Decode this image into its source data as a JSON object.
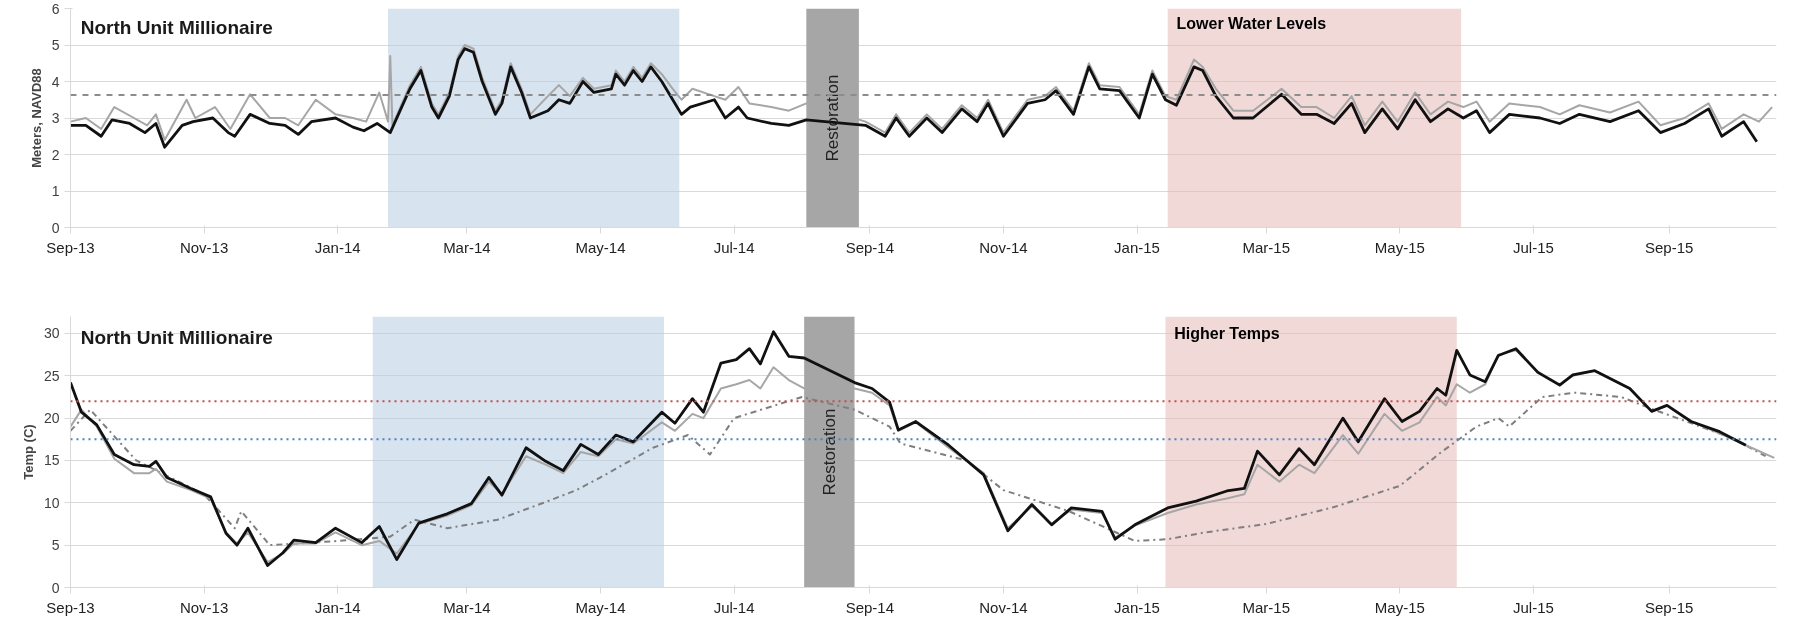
{
  "chart_data": [
    {
      "type": "line",
      "title": "North Unit Millionaire",
      "ylabel": "Meters, NAVD88",
      "xlim": [
        "2013-09-01",
        "2015-10-20"
      ],
      "ylim": [
        0,
        6
      ],
      "yticks": [
        0,
        1,
        2,
        3,
        4,
        5,
        6
      ],
      "xticks": [
        {
          "value": "2013-09-01",
          "label": "Sep-13"
        },
        {
          "value": "2013-11-01",
          "label": "Nov-13"
        },
        {
          "value": "2014-01-01",
          "label": "Jan-14"
        },
        {
          "value": "2014-03-01",
          "label": "Mar-14"
        },
        {
          "value": "2014-05-01",
          "label": "May-14"
        },
        {
          "value": "2014-07-01",
          "label": "Jul-14"
        },
        {
          "value": "2014-09-01",
          "label": "Sep-14"
        },
        {
          "value": "2014-11-01",
          "label": "Nov-14"
        },
        {
          "value": "2015-01-01",
          "label": "Jan-15"
        },
        {
          "value": "2015-03-01",
          "label": "Mar-15"
        },
        {
          "value": "2015-05-01",
          "label": "May-15"
        },
        {
          "value": "2015-07-01",
          "label": "Jul-15"
        },
        {
          "value": "2015-09-01",
          "label": "Sep-15"
        }
      ],
      "grid": "y",
      "bands": [
        {
          "axis": "x",
          "from": "2014-01-24",
          "to": "2014-06-06",
          "color": "#b8cce4"
        },
        {
          "axis": "x",
          "from": "2014-08-03",
          "to": "2014-08-27",
          "label": "Restoration",
          "color": "#a6a6a6"
        },
        {
          "axis": "x",
          "from": "2015-01-15",
          "to": "2015-05-29",
          "label": "Lower Water Levels",
          "color": "#e6b9b8"
        }
      ],
      "ref_lines": [
        {
          "axis": "y",
          "value": 3.63,
          "color": "#8c8c8c",
          "line_style": "dashed"
        }
      ],
      "series": [
        {
          "color": "#a6a6a6",
          "line_style": "solid",
          "x": [
            "2013-09-01",
            "2013-09-08",
            "2013-09-15",
            "2013-09-21",
            "2013-09-30",
            "2013-10-06",
            "2013-10-10",
            "2013-10-14",
            "2013-10-24",
            "2013-10-28",
            "2013-11-06",
            "2013-11-13",
            "2013-11-22",
            "2013-12-01",
            "2013-12-08",
            "2013-12-14",
            "2013-12-22",
            "2013-12-31",
            "2014-01-08",
            "2014-01-14",
            "2014-01-20",
            "2014-01-24",
            "2014-01-25",
            "2014-01-26",
            "2014-02-03",
            "2014-02-08",
            "2014-02-13",
            "2014-02-16",
            "2014-02-21",
            "2014-02-25",
            "2014-02-28",
            "2014-03-04",
            "2014-03-08",
            "2014-03-14",
            "2014-03-17",
            "2014-03-21",
            "2014-03-26",
            "2014-03-30",
            "2014-04-07",
            "2014-04-12",
            "2014-04-17",
            "2014-04-23",
            "2014-04-28",
            "2014-05-06",
            "2014-05-08",
            "2014-05-12",
            "2014-05-16",
            "2014-05-20",
            "2014-05-24",
            "2014-05-29",
            "2014-06-03",
            "2014-06-07",
            "2014-06-12",
            "2014-06-22",
            "2014-06-27",
            "2014-07-03",
            "2014-07-08",
            "2014-07-18",
            "2014-07-26",
            "2014-08-03",
            "2014-08-30",
            "2014-09-08",
            "2014-09-13",
            "2014-09-19",
            "2014-09-27",
            "2014-10-04",
            "2014-10-13",
            "2014-10-20",
            "2014-10-25",
            "2014-11-01",
            "2014-11-12",
            "2014-11-20",
            "2014-11-25",
            "2014-12-03",
            "2014-12-10",
            "2014-12-15",
            "2014-12-24",
            "2015-01-02",
            "2015-01-08",
            "2015-01-14",
            "2015-01-19",
            "2015-01-27",
            "2015-01-31",
            "2015-02-06",
            "2015-02-14",
            "2015-02-23",
            "2015-03-08",
            "2015-03-17",
            "2015-03-24",
            "2015-04-01",
            "2015-04-09",
            "2015-04-15",
            "2015-04-23",
            "2015-04-30",
            "2015-05-08",
            "2015-05-15",
            "2015-05-23",
            "2015-05-30",
            "2015-06-05",
            "2015-06-11",
            "2015-06-20",
            "2015-07-04",
            "2015-07-13",
            "2015-07-22",
            "2015-08-05",
            "2015-08-18",
            "2015-08-28",
            "2015-09-08",
            "2015-09-19",
            "2015-09-25",
            "2015-10-05",
            "2015-10-12",
            "2015-10-18"
          ],
          "values": [
            2.9,
            3.0,
            2.7,
            3.3,
            3.0,
            2.8,
            3.1,
            2.4,
            3.5,
            3.0,
            3.3,
            2.7,
            3.65,
            3.0,
            3.0,
            2.8,
            3.5,
            3.1,
            3.0,
            2.9,
            3.7,
            2.9,
            4.7,
            2.8,
            3.9,
            4.4,
            3.4,
            3.1,
            3.7,
            4.7,
            5.0,
            4.9,
            4.1,
            3.2,
            3.5,
            4.5,
            3.8,
            3.1,
            3.6,
            3.9,
            3.6,
            4.1,
            3.8,
            3.9,
            4.3,
            4.0,
            4.4,
            4.1,
            4.5,
            4.2,
            3.8,
            3.5,
            3.8,
            3.6,
            3.5,
            3.85,
            3.4,
            3.3,
            3.2,
            3.4,
            2.9,
            2.6,
            3.1,
            2.6,
            3.1,
            2.7,
            3.35,
            3.0,
            3.5,
            2.6,
            3.5,
            3.6,
            3.85,
            3.2,
            4.5,
            3.9,
            3.85,
            3.1,
            4.3,
            3.6,
            3.5,
            4.6,
            4.4,
            3.8,
            3.2,
            3.2,
            3.8,
            3.3,
            3.3,
            3.0,
            3.6,
            2.8,
            3.45,
            2.9,
            3.7,
            3.1,
            3.45,
            3.3,
            3.45,
            2.9,
            3.4,
            3.3,
            3.1,
            3.35,
            3.15,
            3.45,
            2.8,
            3.0,
            3.4,
            2.7,
            3.1,
            2.9,
            3.3
          ]
        },
        {
          "color": "#111111",
          "line_style": "solid",
          "x": [
            "2013-09-01",
            "2013-09-08",
            "2013-09-15",
            "2013-09-20",
            "2013-09-28",
            "2013-10-05",
            "2013-10-10",
            "2013-10-14",
            "2013-10-22",
            "2013-10-27",
            "2013-11-05",
            "2013-11-12",
            "2013-11-15",
            "2013-11-22",
            "2013-12-01",
            "2013-12-08",
            "2013-12-14",
            "2013-12-20",
            "2013-12-31",
            "2014-01-08",
            "2014-01-13",
            "2014-01-19",
            "2014-01-25",
            "2014-02-03",
            "2014-02-08",
            "2014-02-13",
            "2014-02-16",
            "2014-02-21",
            "2014-02-25",
            "2014-02-28",
            "2014-03-04",
            "2014-03-08",
            "2014-03-14",
            "2014-03-17",
            "2014-03-21",
            "2014-03-26",
            "2014-03-30",
            "2014-04-07",
            "2014-04-12",
            "2014-04-17",
            "2014-04-23",
            "2014-04-28",
            "2014-05-06",
            "2014-05-08",
            "2014-05-12",
            "2014-05-16",
            "2014-05-20",
            "2014-05-24",
            "2014-05-29",
            "2014-06-03",
            "2014-06-07",
            "2014-06-11",
            "2014-06-22",
            "2014-06-27",
            "2014-07-03",
            "2014-07-07",
            "2014-07-18",
            "2014-07-26",
            "2014-08-03",
            "2014-08-30",
            "2014-09-08",
            "2014-09-13",
            "2014-09-19",
            "2014-09-27",
            "2014-10-04",
            "2014-10-13",
            "2014-10-20",
            "2014-10-25",
            "2014-11-01",
            "2014-11-12",
            "2014-11-20",
            "2014-11-25",
            "2014-12-03",
            "2014-12-10",
            "2014-12-15",
            "2014-12-24",
            "2015-01-02",
            "2015-01-08",
            "2015-01-14",
            "2015-01-19",
            "2015-01-27",
            "2015-01-31",
            "2015-02-06",
            "2015-02-14",
            "2015-02-23",
            "2015-03-08",
            "2015-03-17",
            "2015-03-24",
            "2015-04-01",
            "2015-04-09",
            "2015-04-15",
            "2015-04-23",
            "2015-04-30",
            "2015-05-08",
            "2015-05-15",
            "2015-05-23",
            "2015-05-30",
            "2015-06-05",
            "2015-06-11",
            "2015-06-20",
            "2015-07-04",
            "2015-07-13",
            "2015-07-22",
            "2015-08-05",
            "2015-08-18",
            "2015-08-28",
            "2015-09-08",
            "2015-09-19",
            "2015-09-25",
            "2015-10-05",
            "2015-10-11"
          ],
          "values": [
            2.8,
            2.8,
            2.5,
            2.95,
            2.85,
            2.6,
            2.85,
            2.2,
            2.8,
            2.9,
            3.0,
            2.6,
            2.5,
            3.1,
            2.85,
            2.8,
            2.55,
            2.9,
            3.0,
            2.75,
            2.65,
            2.85,
            2.6,
            3.8,
            4.3,
            3.3,
            3.0,
            3.6,
            4.6,
            4.9,
            4.8,
            4.0,
            3.1,
            3.4,
            4.4,
            3.7,
            3.0,
            3.2,
            3.5,
            3.4,
            4.0,
            3.7,
            3.8,
            4.2,
            3.9,
            4.3,
            4.0,
            4.4,
            4.0,
            3.5,
            3.1,
            3.3,
            3.5,
            3.0,
            3.3,
            3.0,
            2.85,
            2.8,
            2.95,
            2.8,
            2.5,
            3.0,
            2.5,
            3.0,
            2.6,
            3.25,
            2.9,
            3.4,
            2.5,
            3.4,
            3.5,
            3.75,
            3.1,
            4.4,
            3.8,
            3.75,
            3.0,
            4.2,
            3.5,
            3.35,
            4.4,
            4.3,
            3.6,
            3.0,
            3.0,
            3.65,
            3.1,
            3.1,
            2.85,
            3.4,
            2.6,
            3.25,
            2.7,
            3.5,
            2.9,
            3.25,
            3.0,
            3.2,
            2.6,
            3.1,
            3.0,
            2.85,
            3.1,
            2.9,
            3.2,
            2.6,
            2.85,
            3.25,
            2.5,
            2.9,
            2.35
          ]
        }
      ]
    },
    {
      "type": "line",
      "title": "North Unit Millionaire",
      "ylabel": "Temp (C)",
      "xlim": [
        "2013-09-01",
        "2015-10-20"
      ],
      "ylim": [
        0,
        32
      ],
      "yticks": [
        0,
        5,
        10,
        15,
        20,
        25,
        30
      ],
      "xticks": [
        {
          "value": "2013-09-01",
          "label": "Sep-13"
        },
        {
          "value": "2013-11-01",
          "label": "Nov-13"
        },
        {
          "value": "2014-01-01",
          "label": "Jan-14"
        },
        {
          "value": "2014-03-01",
          "label": "Mar-14"
        },
        {
          "value": "2014-05-01",
          "label": "May-14"
        },
        {
          "value": "2014-07-01",
          "label": "Jul-14"
        },
        {
          "value": "2014-09-01",
          "label": "Sep-14"
        },
        {
          "value": "2014-11-01",
          "label": "Nov-14"
        },
        {
          "value": "2015-01-01",
          "label": "Jan-15"
        },
        {
          "value": "2015-03-01",
          "label": "Mar-15"
        },
        {
          "value": "2015-05-01",
          "label": "May-15"
        },
        {
          "value": "2015-07-01",
          "label": "Jul-15"
        },
        {
          "value": "2015-09-01",
          "label": "Sep-15"
        }
      ],
      "grid": "y",
      "bands": [
        {
          "axis": "x",
          "from": "2014-01-17",
          "to": "2014-05-30",
          "color": "#b8cce4"
        },
        {
          "axis": "x",
          "from": "2014-08-02",
          "to": "2014-08-25",
          "label": "Restoration",
          "color": "#a6a6a6"
        },
        {
          "axis": "x",
          "from": "2015-01-14",
          "to": "2015-05-27",
          "label": "Higher Temps",
          "color": "#e6b9b8"
        }
      ],
      "ref_lines": [
        {
          "axis": "y",
          "value": 22,
          "color": "#c0504d",
          "line_style": "dotted"
        },
        {
          "axis": "y",
          "value": 17.5,
          "color": "#4f81bd",
          "line_style": "dotted"
        }
      ],
      "series": [
        {
          "color": "#7f7f7f",
          "line_style": "dashed",
          "x": [
            "2013-09-01",
            "2013-09-10",
            "2013-10-01",
            "2013-11-01",
            "2013-11-15",
            "2013-11-18",
            "2013-12-01",
            "2014-01-01",
            "2014-01-25",
            "2014-02-05",
            "2014-02-20",
            "2014-03-15",
            "2014-04-05",
            "2014-04-20",
            "2014-05-01",
            "2014-05-25",
            "2014-06-10",
            "2014-06-20",
            "2014-07-01",
            "2014-08-01",
            "2014-08-25",
            "2014-09-10",
            "2014-09-15",
            "2014-10-15",
            "2014-11-01",
            "2014-12-01",
            "2014-12-31",
            "2015-01-15",
            "2015-02-01",
            "2015-03-01",
            "2015-04-01",
            "2015-05-01",
            "2015-05-20",
            "2015-06-05",
            "2015-06-15",
            "2015-06-20",
            "2015-07-05",
            "2015-07-20",
            "2015-08-10",
            "2015-08-25",
            "2015-09-10",
            "2015-10-01",
            "2015-10-15"
          ],
          "values": [
            18.5,
            21,
            15,
            11,
            7,
            9,
            5,
            5.5,
            6,
            8,
            7,
            8,
            10,
            11.5,
            13,
            16.5,
            18,
            15.7,
            20,
            22.5,
            21,
            19,
            17,
            15,
            11.5,
            9,
            5.5,
            5.7,
            6.5,
            7.5,
            9.5,
            12,
            16,
            19,
            20,
            19,
            22.5,
            23,
            22.5,
            21,
            19.5,
            17.5,
            15.5
          ]
        },
        {
          "color": "#a6a6a6",
          "line_style": "solid",
          "x": [
            "2013-09-01",
            "2013-09-06",
            "2013-09-13",
            "2013-09-21",
            "2013-09-30",
            "2013-10-07",
            "2013-10-10",
            "2013-10-15",
            "2013-10-26",
            "2013-11-04",
            "2013-11-11",
            "2013-11-16",
            "2013-11-21",
            "2013-11-30",
            "2013-12-07",
            "2013-12-12",
            "2013-12-22",
            "2013-12-31",
            "2014-01-12",
            "2014-01-20",
            "2014-01-28",
            "2014-02-07",
            "2014-02-20",
            "2014-03-03",
            "2014-03-11",
            "2014-03-17",
            "2014-03-28",
            "2014-04-06",
            "2014-04-14",
            "2014-04-22",
            "2014-04-30",
            "2014-05-08",
            "2014-05-16",
            "2014-05-29",
            "2014-06-04",
            "2014-06-12",
            "2014-06-17",
            "2014-06-25",
            "2014-07-02",
            "2014-07-08",
            "2014-07-13",
            "2014-07-19",
            "2014-07-26",
            "2014-08-02",
            "2014-08-25",
            "2014-09-02",
            "2014-09-10",
            "2014-09-14",
            "2014-09-22",
            "2014-10-07",
            "2014-10-23",
            "2014-11-03",
            "2014-11-14",
            "2014-11-23",
            "2014-12-02",
            "2014-12-16",
            "2014-12-22",
            "2014-12-31",
            "2015-01-15",
            "2015-01-28",
            "2015-02-11",
            "2015-02-19",
            "2015-02-25",
            "2015-03-07",
            "2015-03-16",
            "2015-03-23",
            "2015-04-05",
            "2015-04-12",
            "2015-04-24",
            "2015-05-02",
            "2015-05-10",
            "2015-05-18",
            "2015-05-22",
            "2015-05-27",
            "2015-06-02",
            "2015-06-09",
            "2015-06-15",
            "2015-06-23",
            "2015-07-03",
            "2015-07-13",
            "2015-07-19",
            "2015-07-29",
            "2015-08-14",
            "2015-08-24",
            "2015-08-31",
            "2015-09-11",
            "2015-09-24",
            "2015-10-06",
            "2015-10-19"
          ],
          "values": [
            19,
            21,
            19,
            15.2,
            13.5,
            13.5,
            14,
            12.5,
            11.5,
            10.5,
            6.5,
            5.2,
            6.5,
            3,
            4,
            5.2,
            5.2,
            6.5,
            5,
            5.5,
            4,
            7.5,
            8.5,
            9.7,
            12.5,
            11,
            15.5,
            14.5,
            13.5,
            16,
            15.5,
            17.5,
            17,
            19.5,
            18.5,
            20.5,
            20,
            23.5,
            24,
            24.5,
            23.5,
            26,
            24.5,
            23.5,
            23.5,
            23,
            21.5,
            18.5,
            19.5,
            16.5,
            13.5,
            7,
            9.6,
            7.5,
            9.2,
            8.8,
            5.9,
            7.3,
            8.8,
            9.8,
            10.5,
            11,
            14.5,
            12.5,
            14.5,
            13.5,
            18,
            15.8,
            20.5,
            18.5,
            19.5,
            22.5,
            21.5,
            24,
            23,
            24,
            27.5,
            28,
            25.5,
            24,
            25,
            25.6,
            23.5,
            20.8,
            21.5,
            19.6,
            18.2,
            16.8,
            15.3
          ]
        },
        {
          "color": "#111111",
          "line_style": "solid",
          "x": [
            "2013-09-01",
            "2013-09-06",
            "2013-09-13",
            "2013-09-21",
            "2013-09-30",
            "2013-10-07",
            "2013-10-10",
            "2013-10-15",
            "2013-10-26",
            "2013-11-04",
            "2013-11-11",
            "2013-11-16",
            "2013-11-21",
            "2013-11-30",
            "2013-12-07",
            "2013-12-12",
            "2013-12-22",
            "2013-12-31",
            "2014-01-12",
            "2014-01-20",
            "2014-01-28",
            "2014-02-07",
            "2014-02-20",
            "2014-03-03",
            "2014-03-11",
            "2014-03-17",
            "2014-03-28",
            "2014-04-06",
            "2014-04-14",
            "2014-04-22",
            "2014-04-30",
            "2014-05-08",
            "2014-05-16",
            "2014-05-29",
            "2014-06-04",
            "2014-06-12",
            "2014-06-17",
            "2014-06-25",
            "2014-07-02",
            "2014-07-08",
            "2014-07-13",
            "2014-07-19",
            "2014-07-26",
            "2014-08-02",
            "2014-08-25",
            "2014-09-02",
            "2014-09-10",
            "2014-09-14",
            "2014-09-22",
            "2014-10-07",
            "2014-10-23",
            "2014-11-03",
            "2014-11-14",
            "2014-11-23",
            "2014-12-02",
            "2014-12-16",
            "2014-12-22",
            "2014-12-31",
            "2015-01-15",
            "2015-01-28",
            "2015-02-11",
            "2015-02-19",
            "2015-02-25",
            "2015-03-07",
            "2015-03-16",
            "2015-03-23",
            "2015-04-05",
            "2015-04-12",
            "2015-04-24",
            "2015-05-02",
            "2015-05-10",
            "2015-05-18",
            "2015-05-22",
            "2015-05-27",
            "2015-06-02",
            "2015-06-09",
            "2015-06-15",
            "2015-06-23",
            "2015-07-03",
            "2015-07-13",
            "2015-07-19",
            "2015-07-29",
            "2015-08-14",
            "2015-08-24",
            "2015-08-31",
            "2015-09-11",
            "2015-09-24",
            "2015-10-06"
          ],
          "values": [
            24.2,
            20.7,
            19.2,
            15.7,
            14.5,
            14.3,
            14.9,
            13,
            11.7,
            10.7,
            6.4,
            5,
            7,
            2.6,
            4.1,
            5.6,
            5.3,
            7,
            5.3,
            7.2,
            3.3,
            7.6,
            8.7,
            9.9,
            13,
            10.9,
            16.5,
            14.9,
            13.8,
            16.9,
            15.7,
            18,
            17.2,
            20.7,
            19.4,
            22.3,
            20.7,
            26.5,
            26.9,
            28.2,
            26.4,
            30.2,
            27.3,
            27.1,
            24.2,
            23.5,
            21.9,
            18.6,
            19.6,
            16.8,
            13.3,
            6.7,
            9.8,
            7.4,
            9.4,
            9,
            5.7,
            7.4,
            9.4,
            10.2,
            11.4,
            11.7,
            16.1,
            13.3,
            16.4,
            14.5,
            20,
            17.2,
            22.3,
            19.6,
            20.8,
            23.5,
            22.7,
            28,
            25.1,
            24.3,
            27.4,
            28.2,
            25.4,
            23.9,
            25.1,
            25.6,
            23.5,
            20.8,
            21.5,
            19.6,
            18.4,
            16.8
          ]
        }
      ]
    }
  ]
}
